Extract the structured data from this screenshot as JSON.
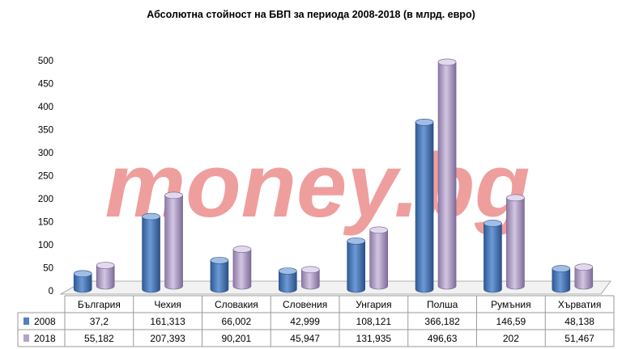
{
  "watermark": "money.bg",
  "colors": {
    "series_2008": "#4f81bd",
    "series_2018": "#b3a2c7",
    "watermark": "#ec8d8d",
    "frame": "#9a9a9a"
  },
  "chart_data": {
    "type": "bar",
    "style": "3d-cylinder",
    "title": "Абсолютна стойност на БВП за периода 2008-2018 (в млрд. евро)",
    "categories": [
      "България",
      "Чехия",
      "Словакия",
      "Словения",
      "Унгария",
      "Полша",
      "Румъния",
      "Хърватия"
    ],
    "series": [
      {
        "name": "2008",
        "values": [
          37.2,
          161.313,
          66.002,
          42.999,
          108.121,
          366.182,
          146.59,
          48.138
        ],
        "labels": [
          "37,2",
          "161,313",
          "66,002",
          "42,999",
          "108,121",
          "366,182",
          "146,59",
          "48,138"
        ]
      },
      {
        "name": "2018",
        "values": [
          55.182,
          207.393,
          90.201,
          45.947,
          131.935,
          496.63,
          202,
          51.467
        ],
        "labels": [
          "55,182",
          "207,393",
          "90,201",
          "45,947",
          "131,935",
          "496,63",
          "202",
          "51,467"
        ]
      }
    ],
    "ylim": [
      0,
      500
    ],
    "yticks": [
      0,
      50,
      100,
      150,
      200,
      250,
      300,
      350,
      400,
      450,
      500
    ],
    "grid": false,
    "legend": "data-table-left"
  }
}
